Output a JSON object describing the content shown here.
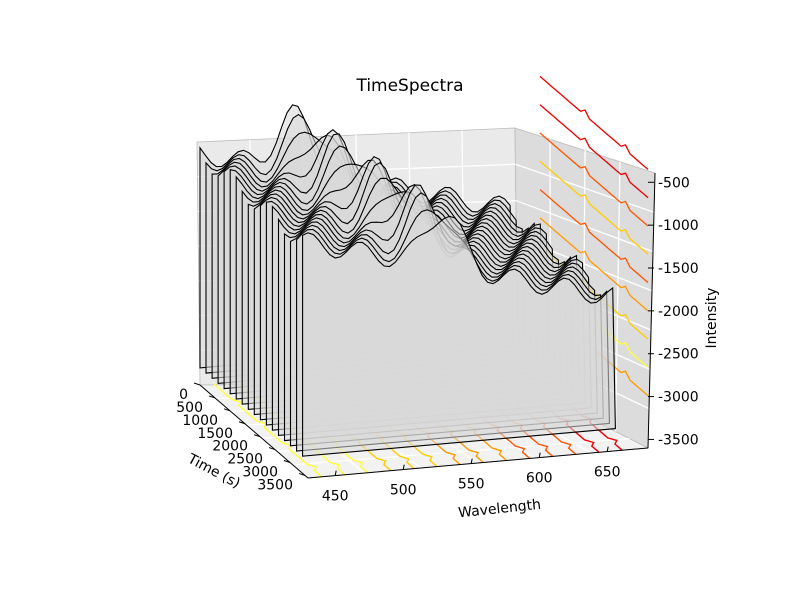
{
  "chart_data": {
    "type": "line",
    "title": "TimeSpectra",
    "xlabel": "Wavelength",
    "ylabel": "Time (s)",
    "zlabel": "Intensity",
    "x_ticks": [
      "450",
      "500",
      "550",
      "600",
      "650"
    ],
    "y_ticks": [
      "0",
      "500",
      "1000",
      "1500",
      "2000",
      "2500",
      "3000",
      "3500"
    ],
    "z_ticks": [
      "-500",
      "-1000",
      "-1500",
      "-2000",
      "-2500",
      "-3000",
      "-3500"
    ],
    "xlim": [
      430,
      680
    ],
    "ylim": [
      0,
      3600
    ],
    "zlim": [
      -3600,
      -100
    ],
    "grid": true,
    "colormap": [
      "#ffff33",
      "#ffcc00",
      "#ff9900",
      "#ff5500",
      "#ee0000"
    ],
    "surface": {
      "edge_color": "#000000",
      "face_color": "#d8d8d8"
    }
  }
}
